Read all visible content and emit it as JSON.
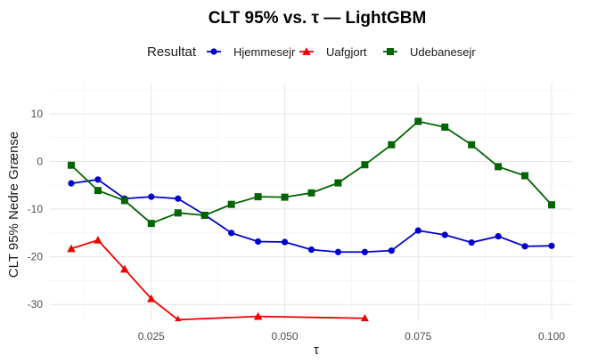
{
  "chart_data": {
    "type": "line",
    "title": "CLT 95% vs. τ — LightGBM",
    "xlabel": "τ",
    "ylabel": "CLT 95% Nedre Grænse",
    "legend_title": "Resultat",
    "legend_position": "top",
    "grid": true,
    "xlim": [
      0.006,
      0.104
    ],
    "ylim": [
      -33.5,
      16.5
    ],
    "x_ticks": [
      0.025,
      0.05,
      0.075,
      0.1
    ],
    "x_tick_labels": [
      "0.025",
      "0.050",
      "0.075",
      "0.100"
    ],
    "y_ticks": [
      -30,
      -20,
      -10,
      0,
      10
    ],
    "y_tick_labels": [
      "-30",
      "-20",
      "-10",
      "0",
      "10"
    ],
    "series": [
      {
        "name": "Hjemmesejr",
        "color": "#0000cc",
        "marker": "circle",
        "x": [
          0.01,
          0.015,
          0.02,
          0.025,
          0.03,
          0.035,
          0.04,
          0.045,
          0.05,
          0.055,
          0.06,
          0.065,
          0.07,
          0.075,
          0.08,
          0.085,
          0.09,
          0.095,
          0.1
        ],
        "y": [
          -4.6,
          -3.8,
          -7.8,
          -7.4,
          -7.8,
          -11.2,
          -15.0,
          -16.8,
          -16.9,
          -18.5,
          -19.0,
          -19.0,
          -18.7,
          -14.5,
          -15.4,
          -17.0,
          -15.7,
          -17.8,
          -17.7
        ]
      },
      {
        "name": "Uafgjort",
        "color": "#ee0000",
        "marker": "triangle",
        "x": [
          0.01,
          0.015,
          0.02,
          0.025,
          0.03,
          0.045,
          0.065
        ],
        "y": [
          -18.3,
          -16.5,
          -22.6,
          -28.8,
          -33.2,
          -32.5,
          -32.9
        ]
      },
      {
        "name": "Udebanesejr",
        "color": "#006400",
        "marker": "square",
        "x": [
          0.01,
          0.015,
          0.02,
          0.025,
          0.03,
          0.035,
          0.04,
          0.045,
          0.05,
          0.055,
          0.06,
          0.065,
          0.07,
          0.075,
          0.08,
          0.085,
          0.09,
          0.095,
          0.1
        ],
        "y": [
          -0.8,
          -6.1,
          -8.2,
          -13.0,
          -10.8,
          -11.3,
          -9.0,
          -7.4,
          -7.5,
          -6.6,
          -4.5,
          -0.7,
          3.5,
          8.4,
          7.2,
          3.5,
          -1.1,
          -3.0,
          -9.1
        ]
      }
    ]
  }
}
